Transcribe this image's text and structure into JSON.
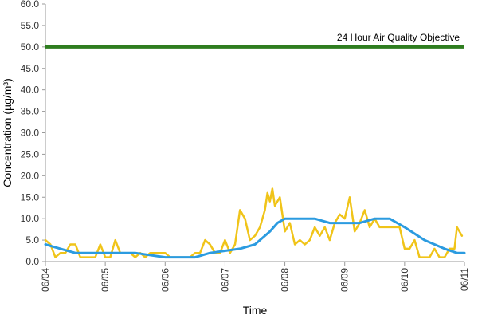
{
  "chart_data": {
    "type": "line",
    "xlabel": "Time",
    "ylabel": "Concentration (µg/m³)",
    "ylim": [
      0,
      60
    ],
    "yticks": [
      "0.0",
      "5.0",
      "10.0",
      "15.0",
      "20.0",
      "25.0",
      "30.0",
      "35.0",
      "40.0",
      "45.0",
      "50.0",
      "55.0",
      "60.0"
    ],
    "xlim": [
      "06/04",
      "06/11"
    ],
    "x_tick_labels": [
      "06/04",
      "06/05",
      "06/06",
      "06/07",
      "06/08",
      "06/09",
      "06/10",
      "06/11"
    ],
    "grid": false,
    "legend": "none",
    "reference_line": {
      "label": "24 Hour Air Quality Objective",
      "value": 50,
      "color": "#2e7d1f"
    },
    "series": [
      {
        "color": "#f0c419",
        "points": [
          [
            "06/04 00:00",
            5
          ],
          [
            "06/04 02:00",
            4
          ],
          [
            "06/04 04:00",
            1
          ],
          [
            "06/04 06:00",
            2
          ],
          [
            "06/04 08:00",
            2
          ],
          [
            "06/04 10:00",
            4
          ],
          [
            "06/04 12:00",
            4
          ],
          [
            "06/04 14:00",
            1
          ],
          [
            "06/04 16:00",
            1
          ],
          [
            "06/04 18:00",
            1
          ],
          [
            "06/04 20:00",
            1
          ],
          [
            "06/04 22:00",
            4
          ],
          [
            "06/05 00:00",
            1
          ],
          [
            "06/05 02:00",
            1
          ],
          [
            "06/05 04:00",
            5
          ],
          [
            "06/05 06:00",
            2
          ],
          [
            "06/05 08:00",
            2
          ],
          [
            "06/05 10:00",
            2
          ],
          [
            "06/05 12:00",
            1
          ],
          [
            "06/05 14:00",
            2
          ],
          [
            "06/05 16:00",
            1
          ],
          [
            "06/05 18:00",
            2
          ],
          [
            "06/05 20:00",
            2
          ],
          [
            "06/05 22:00",
            2
          ],
          [
            "06/06 00:00",
            2
          ],
          [
            "06/06 02:00",
            1
          ],
          [
            "06/06 04:00",
            1
          ],
          [
            "06/06 06:00",
            1
          ],
          [
            "06/06 08:00",
            1
          ],
          [
            "06/06 10:00",
            1
          ],
          [
            "06/06 12:00",
            2
          ],
          [
            "06/06 14:00",
            2
          ],
          [
            "06/06 16:00",
            5
          ],
          [
            "06/06 18:00",
            4
          ],
          [
            "06/06 20:00",
            2
          ],
          [
            "06/06 22:00",
            2
          ],
          [
            "06/07 00:00",
            5
          ],
          [
            "06/07 02:00",
            2
          ],
          [
            "06/07 04:00",
            4
          ],
          [
            "06/07 06:00",
            12
          ],
          [
            "06/07 08:00",
            10
          ],
          [
            "06/07 10:00",
            5
          ],
          [
            "06/07 12:00",
            6
          ],
          [
            "06/07 14:00",
            8
          ],
          [
            "06/07 16:00",
            12
          ],
          [
            "06/07 17:00",
            16
          ],
          [
            "06/07 18:00",
            14
          ],
          [
            "06/07 19:00",
            17
          ],
          [
            "06/07 20:00",
            13
          ],
          [
            "06/07 22:00",
            15
          ],
          [
            "06/08 00:00",
            7
          ],
          [
            "06/08 02:00",
            9
          ],
          [
            "06/08 04:00",
            4
          ],
          [
            "06/08 06:00",
            5
          ],
          [
            "06/08 08:00",
            4
          ],
          [
            "06/08 10:00",
            5
          ],
          [
            "06/08 12:00",
            8
          ],
          [
            "06/08 14:00",
            6
          ],
          [
            "06/08 16:00",
            8
          ],
          [
            "06/08 18:00",
            5
          ],
          [
            "06/08 20:00",
            9
          ],
          [
            "06/08 22:00",
            11
          ],
          [
            "06/09 00:00",
            10
          ],
          [
            "06/09 02:00",
            15
          ],
          [
            "06/09 04:00",
            7
          ],
          [
            "06/09 06:00",
            9
          ],
          [
            "06/09 08:00",
            12
          ],
          [
            "06/09 10:00",
            8
          ],
          [
            "06/09 12:00",
            10
          ],
          [
            "06/09 14:00",
            8
          ],
          [
            "06/09 16:00",
            8
          ],
          [
            "06/09 18:00",
            8
          ],
          [
            "06/09 20:00",
            8
          ],
          [
            "06/09 22:00",
            8
          ],
          [
            "06/10 00:00",
            3
          ],
          [
            "06/10 02:00",
            3
          ],
          [
            "06/10 04:00",
            5
          ],
          [
            "06/10 06:00",
            1
          ],
          [
            "06/10 08:00",
            1
          ],
          [
            "06/10 10:00",
            1
          ],
          [
            "06/10 12:00",
            3
          ],
          [
            "06/10 14:00",
            1
          ],
          [
            "06/10 16:00",
            1
          ],
          [
            "06/10 18:00",
            3
          ],
          [
            "06/10 20:00",
            3
          ],
          [
            "06/10 21:00",
            8
          ],
          [
            "06/10 23:00",
            6
          ]
        ]
      },
      {
        "color": "#2b9be0",
        "points": [
          [
            "06/04 00:00",
            4
          ],
          [
            "06/04 06:00",
            3
          ],
          [
            "06/04 12:00",
            2
          ],
          [
            "06/05 00:00",
            2
          ],
          [
            "06/05 12:00",
            2
          ],
          [
            "06/06 00:00",
            1
          ],
          [
            "06/06 12:00",
            1
          ],
          [
            "06/06 18:00",
            2
          ],
          [
            "06/07 06:00",
            3
          ],
          [
            "06/07 12:00",
            4
          ],
          [
            "06/07 18:00",
            7
          ],
          [
            "06/07 21:00",
            9
          ],
          [
            "06/08 00:00",
            10
          ],
          [
            "06/08 12:00",
            10
          ],
          [
            "06/08 18:00",
            9
          ],
          [
            "06/09 06:00",
            9
          ],
          [
            "06/09 12:00",
            10
          ],
          [
            "06/09 18:00",
            10
          ],
          [
            "06/10 00:00",
            8
          ],
          [
            "06/10 08:00",
            5
          ],
          [
            "06/10 16:00",
            3
          ],
          [
            "06/10 21:00",
            2
          ],
          [
            "06/11 00:00",
            2
          ]
        ]
      }
    ]
  },
  "colors": {
    "axis": "#999999",
    "reference_line": "#2e7d1f",
    "series_yellow": "#f0c419",
    "series_blue": "#2b9be0"
  }
}
